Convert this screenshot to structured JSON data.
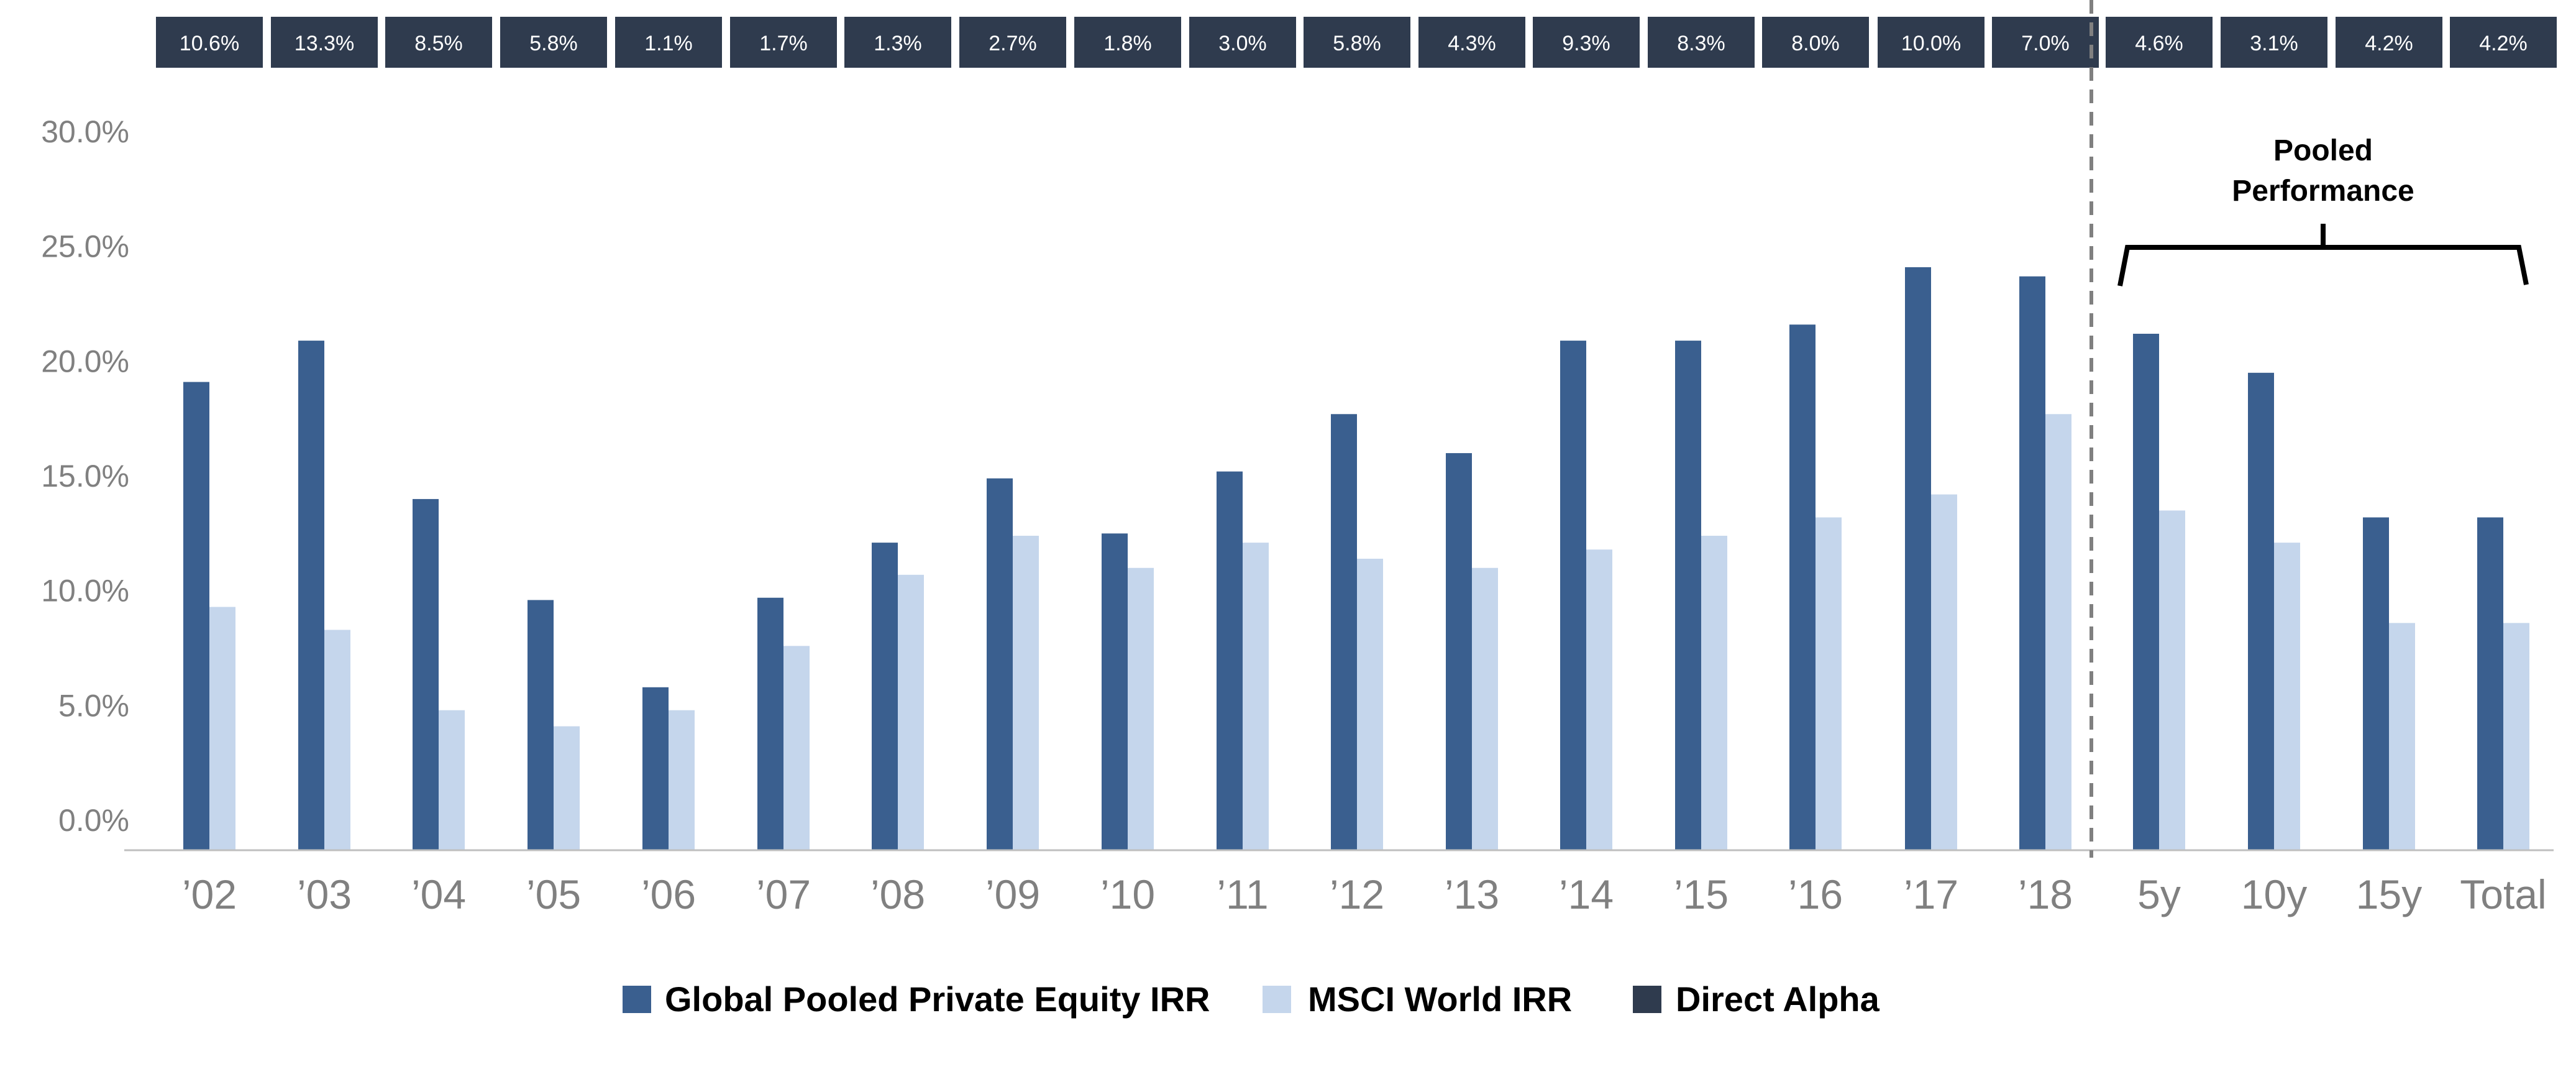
{
  "chart_data": {
    "type": "bar",
    "categories": [
      "’02",
      "’03",
      "’04",
      "’05",
      "’06",
      "’07",
      "’08",
      "’09",
      "’10",
      "’11",
      "’12",
      "’13",
      "’14",
      "’15",
      "’16",
      "’17",
      "’18",
      "5y",
      "10y",
      "15y",
      "Total"
    ],
    "series": [
      {
        "name": "Global Pooled Private Equity IRR",
        "color": "#3a5f8f",
        "values": [
          19.1,
          20.9,
          14.0,
          9.6,
          5.8,
          9.7,
          12.1,
          14.9,
          12.5,
          15.2,
          17.7,
          16.0,
          20.9,
          20.9,
          21.6,
          24.1,
          23.7,
          21.2,
          19.5,
          13.2,
          13.2
        ]
      },
      {
        "name": "MSCI World IRR",
        "color": "#c5d6ec",
        "values": [
          9.3,
          8.3,
          4.8,
          4.1,
          4.8,
          7.6,
          10.7,
          12.4,
          11.0,
          12.1,
          11.4,
          11.0,
          11.8,
          12.4,
          13.2,
          14.2,
          17.7,
          13.5,
          12.1,
          8.6,
          8.6
        ]
      },
      {
        "name": "Direct Alpha",
        "color": "#2f3b4e",
        "labels": [
          "10.6%",
          "13.3%",
          "8.5%",
          "5.8%",
          "1.1%",
          "1.7%",
          "1.3%",
          "2.7%",
          "1.8%",
          "3.0%",
          "5.8%",
          "4.3%",
          "9.3%",
          "8.3%",
          "8.0%",
          "10.0%",
          "7.0%",
          "4.6%",
          "3.1%",
          "4.2%",
          "4.2%"
        ]
      }
    ],
    "yticks": [
      "0.0%",
      "5.0%",
      "10.0%",
      "15.0%",
      "20.0%",
      "25.0%",
      "30.0%"
    ],
    "ylim": [
      0,
      30
    ],
    "grid": false,
    "legend_position": "bottom-center",
    "annotation": {
      "line1": "Pooled",
      "line2": "Performance"
    }
  }
}
